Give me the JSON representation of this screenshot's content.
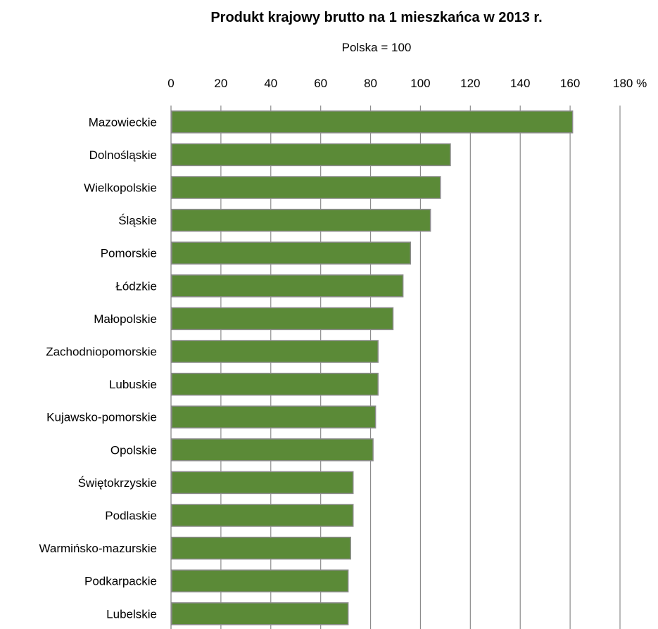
{
  "chart_data": {
    "type": "bar",
    "orientation": "horizontal",
    "title": "Produkt krajowy brutto na 1 mieszkańca w 2013 r.",
    "subtitle": "Polska = 100",
    "xlim": [
      0,
      180
    ],
    "x_ticks": [
      0,
      20,
      40,
      60,
      80,
      100,
      120,
      140,
      160,
      180
    ],
    "x_tick_labels": [
      "0",
      "20",
      "40",
      "60",
      "80",
      "100",
      "120",
      "140",
      "160",
      "180 %"
    ],
    "x_axis_position": "top",
    "grid": true,
    "bar_color": "#5b8a37",
    "categories": [
      "Mazowieckie",
      "Dolnośląskie",
      "Wielkopolskie",
      "Śląskie",
      "Pomorskie",
      "Łódzkie",
      "Małopolskie",
      "Zachodniopomorskie",
      "Lubuskie",
      "Kujawsko-pomorskie",
      "Opolskie",
      "Świętokrzyskie",
      "Podlaskie",
      "Warmińsko-mazurskie",
      "Podkarpackie",
      "Lubelskie"
    ],
    "values": [
      161,
      112,
      108,
      104,
      96,
      93,
      89,
      83,
      83,
      82,
      81,
      73,
      73,
      72,
      71,
      71
    ]
  }
}
